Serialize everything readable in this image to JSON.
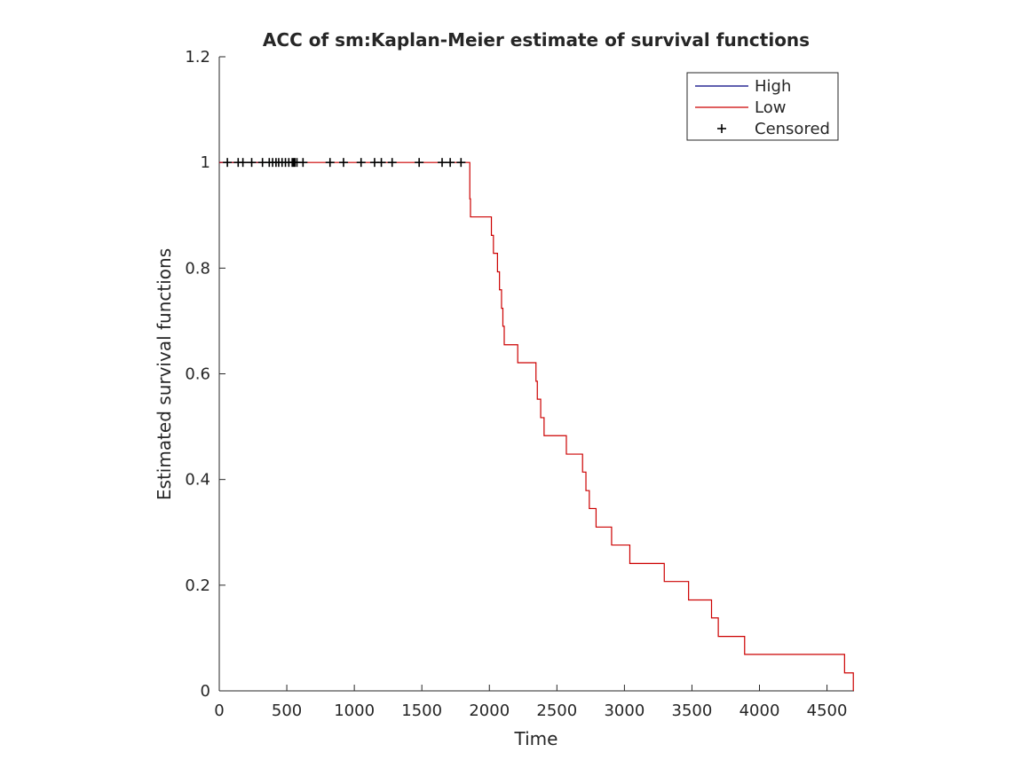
{
  "chart_data": {
    "type": "line",
    "title": "ACC of sm:Kaplan-Meier estimate of survival functions",
    "xlabel": "Time",
    "ylabel": "Estimated survival functions",
    "xlim": [
      0,
      4700
    ],
    "ylim": [
      0,
      1.2
    ],
    "xticks": [
      0,
      500,
      1000,
      1500,
      2000,
      2500,
      3000,
      3500,
      4000,
      4500
    ],
    "yticks": [
      0,
      0.2,
      0.4,
      0.6,
      0.8,
      1,
      1.2
    ],
    "xtick_labels": [
      "0",
      "500",
      "1000",
      "1500",
      "2000",
      "2500",
      "3000",
      "3500",
      "4000",
      "4500"
    ],
    "ytick_labels": [
      "0",
      "0.2",
      "0.4",
      "0.6",
      "0.8",
      "1",
      "1.2"
    ],
    "grid": false,
    "legend_position": "top-right",
    "legend": [
      {
        "label": "High",
        "kind": "line",
        "color": "#00007f"
      },
      {
        "label": "Low",
        "kind": "line",
        "color": "#cc0000"
      },
      {
        "label": "Censored",
        "kind": "marker",
        "color": "#000000"
      }
    ],
    "series": [
      {
        "name": "High",
        "color": "#00007f",
        "step_points": [
          [
            0,
            1.0
          ],
          [
            560,
            1.0
          ]
        ]
      },
      {
        "name": "Low",
        "color": "#cc0000",
        "step_points": [
          [
            0,
            1.0
          ],
          [
            1850,
            1.0
          ],
          [
            1855,
            0.931
          ],
          [
            1860,
            0.897
          ],
          [
            2005,
            0.897
          ],
          [
            2015,
            0.862
          ],
          [
            2030,
            0.828
          ],
          [
            2060,
            0.793
          ],
          [
            2075,
            0.759
          ],
          [
            2090,
            0.724
          ],
          [
            2100,
            0.69
          ],
          [
            2110,
            0.655
          ],
          [
            2200,
            0.655
          ],
          [
            2210,
            0.621
          ],
          [
            2335,
            0.621
          ],
          [
            2345,
            0.586
          ],
          [
            2355,
            0.552
          ],
          [
            2380,
            0.517
          ],
          [
            2405,
            0.483
          ],
          [
            2560,
            0.483
          ],
          [
            2570,
            0.448
          ],
          [
            2680,
            0.448
          ],
          [
            2690,
            0.414
          ],
          [
            2715,
            0.379
          ],
          [
            2740,
            0.345
          ],
          [
            2790,
            0.31
          ],
          [
            2895,
            0.31
          ],
          [
            2905,
            0.276
          ],
          [
            3030,
            0.276
          ],
          [
            3040,
            0.241
          ],
          [
            3285,
            0.241
          ],
          [
            3295,
            0.207
          ],
          [
            3465,
            0.207
          ],
          [
            3475,
            0.172
          ],
          [
            3635,
            0.172
          ],
          [
            3645,
            0.138
          ],
          [
            3685,
            0.138
          ],
          [
            3695,
            0.103
          ],
          [
            3880,
            0.103
          ],
          [
            3890,
            0.069
          ],
          [
            4620,
            0.069
          ],
          [
            4630,
            0.034
          ],
          [
            4690,
            0.034
          ],
          [
            4695,
            0.0
          ]
        ]
      }
    ],
    "censored": {
      "y": 1.0,
      "x": [
        60,
        140,
        175,
        240,
        320,
        370,
        395,
        420,
        440,
        465,
        490,
        515,
        540,
        550,
        560,
        575,
        620,
        820,
        920,
        1050,
        1150,
        1200,
        1280,
        1480,
        1650,
        1710,
        1790
      ]
    }
  }
}
